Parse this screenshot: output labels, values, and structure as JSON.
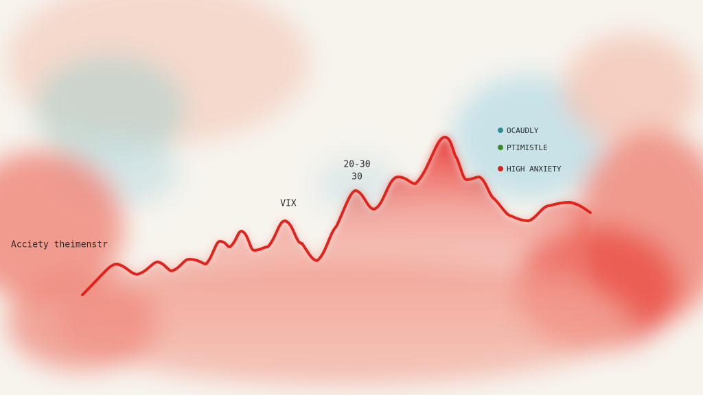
{
  "annotations": {
    "side_label": "Acciety theimenstr",
    "vix": "VIX",
    "range": "20-30",
    "level": "30"
  },
  "legend": [
    {
      "label": "OCAUDLY"
    },
    {
      "label": "PTIMISTLE"
    },
    {
      "label": "HIGH ANXIETY"
    }
  ]
}
